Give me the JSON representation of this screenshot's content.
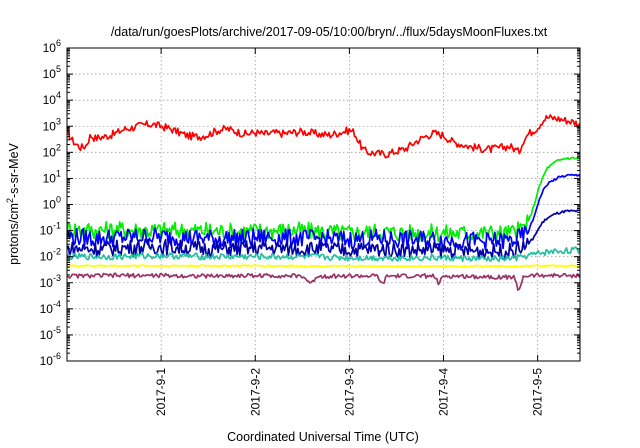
{
  "chart_data": {
    "type": "line",
    "title": "/data/run/goesPlots/archive/2017-09-05/10:00/bryn/../flux/5daysMoonFluxes.txt",
    "xlabel": "Coordinated Universal Time (UTC)",
    "ylabel": "protons/cm²-s-sr-MeV",
    "yscale": "log",
    "ylim": [
      1e-06,
      1000000.0
    ],
    "xlim": [
      0,
      5.45
    ],
    "x_unit": "days since 2017-08-31 00:00 UTC",
    "x_ticks": [
      {
        "value": 1,
        "label": "2017-9-1"
      },
      {
        "value": 2,
        "label": "2017-9-2"
      },
      {
        "value": 3,
        "label": "2017-9-3"
      },
      {
        "value": 4,
        "label": "2017-9-4"
      },
      {
        "value": 5,
        "label": "2017-9-5"
      }
    ],
    "y_ticks": [
      {
        "value": -6,
        "base": "10",
        "exp": "-6"
      },
      {
        "value": -5,
        "base": "10",
        "exp": "-5"
      },
      {
        "value": -4,
        "base": "10",
        "exp": "-4"
      },
      {
        "value": -3,
        "base": "10",
        "exp": "-3"
      },
      {
        "value": -2,
        "base": "10",
        "exp": "-2"
      },
      {
        "value": -1,
        "base": "10",
        "exp": "-1"
      },
      {
        "value": 0,
        "base": "10",
        "exp": "0"
      },
      {
        "value": 1,
        "base": "10",
        "exp": "1"
      },
      {
        "value": 2,
        "base": "10",
        "exp": "2"
      },
      {
        "value": 3,
        "base": "10",
        "exp": "3"
      },
      {
        "value": 4,
        "base": "10",
        "exp": "4"
      },
      {
        "value": 5,
        "base": "10",
        "exp": "5"
      },
      {
        "value": 6,
        "base": "10",
        "exp": "6"
      }
    ],
    "grid": true,
    "series": [
      {
        "color": "#ff0000",
        "points": [
          [
            0,
            700
          ],
          [
            0.05,
            300
          ],
          [
            0.1,
            200
          ],
          [
            0.15,
            150
          ],
          [
            0.2,
            180
          ],
          [
            0.25,
            450
          ],
          [
            0.3,
            350
          ],
          [
            0.4,
            400
          ],
          [
            0.5,
            500
          ],
          [
            0.6,
            750
          ],
          [
            0.7,
            900
          ],
          [
            0.8,
            1100
          ],
          [
            0.9,
            1200
          ],
          [
            1.0,
            1000
          ],
          [
            1.1,
            800
          ],
          [
            1.2,
            550
          ],
          [
            1.3,
            420
          ],
          [
            1.4,
            400
          ],
          [
            1.5,
            480
          ],
          [
            1.6,
            700
          ],
          [
            1.7,
            800
          ],
          [
            1.8,
            620
          ],
          [
            1.9,
            500
          ],
          [
            2.0,
            580
          ],
          [
            2.1,
            500
          ],
          [
            2.2,
            560
          ],
          [
            2.3,
            520
          ],
          [
            2.4,
            580
          ],
          [
            2.5,
            620
          ],
          [
            2.6,
            550
          ],
          [
            2.7,
            480
          ],
          [
            2.8,
            470
          ],
          [
            2.9,
            580
          ],
          [
            3.0,
            700
          ],
          [
            3.05,
            600
          ],
          [
            3.1,
            250
          ],
          [
            3.15,
            120
          ],
          [
            3.2,
            100
          ],
          [
            3.3,
            90
          ],
          [
            3.4,
            85
          ],
          [
            3.5,
            110
          ],
          [
            3.6,
            140
          ],
          [
            3.7,
            250
          ],
          [
            3.8,
            400
          ],
          [
            3.9,
            550
          ],
          [
            4.0,
            450
          ],
          [
            4.1,
            250
          ],
          [
            4.2,
            200
          ],
          [
            4.3,
            160
          ],
          [
            4.4,
            140
          ],
          [
            4.5,
            130
          ],
          [
            4.6,
            150
          ],
          [
            4.7,
            170
          ],
          [
            4.75,
            140
          ],
          [
            4.8,
            100
          ],
          [
            4.85,
            300
          ],
          [
            4.9,
            500
          ],
          [
            5.0,
            900
          ],
          [
            5.05,
            1600
          ],
          [
            5.1,
            2200
          ],
          [
            5.2,
            2000
          ],
          [
            5.3,
            1700
          ],
          [
            5.4,
            1400
          ],
          [
            5.45,
            1100
          ]
        ]
      },
      {
        "color": "#00ee00",
        "points": [
          [
            0,
            0.12
          ],
          [
            0.3,
            0.1
          ],
          [
            0.6,
            0.11
          ],
          [
            0.9,
            0.1
          ],
          [
            1.2,
            0.1
          ],
          [
            1.5,
            0.1
          ],
          [
            1.8,
            0.09
          ],
          [
            2.1,
            0.1
          ],
          [
            2.4,
            0.1
          ],
          [
            2.7,
            0.09
          ],
          [
            3.0,
            0.08
          ],
          [
            3.3,
            0.09
          ],
          [
            3.6,
            0.08
          ],
          [
            3.9,
            0.08
          ],
          [
            4.2,
            0.08
          ],
          [
            4.5,
            0.08
          ],
          [
            4.7,
            0.08
          ],
          [
            4.8,
            0.1
          ],
          [
            4.9,
            0.2
          ],
          [
            4.95,
            0.7
          ],
          [
            5.0,
            3
          ],
          [
            5.05,
            10
          ],
          [
            5.1,
            25
          ],
          [
            5.2,
            45
          ],
          [
            5.3,
            60
          ],
          [
            5.45,
            60
          ]
        ]
      },
      {
        "color": "#0000ff",
        "points": [
          [
            0,
            0.06
          ],
          [
            0.3,
            0.05
          ],
          [
            0.6,
            0.055
          ],
          [
            0.9,
            0.06
          ],
          [
            1.2,
            0.055
          ],
          [
            1.5,
            0.05
          ],
          [
            1.8,
            0.05
          ],
          [
            2.1,
            0.055
          ],
          [
            2.4,
            0.05
          ],
          [
            2.7,
            0.05
          ],
          [
            3.0,
            0.045
          ],
          [
            3.3,
            0.05
          ],
          [
            3.6,
            0.045
          ],
          [
            3.9,
            0.045
          ],
          [
            4.2,
            0.04
          ],
          [
            4.5,
            0.04
          ],
          [
            4.7,
            0.04
          ],
          [
            4.8,
            0.05
          ],
          [
            4.9,
            0.09
          ],
          [
            4.95,
            0.25
          ],
          [
            5.0,
            1
          ],
          [
            5.05,
            3
          ],
          [
            5.1,
            6
          ],
          [
            5.2,
            10
          ],
          [
            5.3,
            13
          ],
          [
            5.45,
            13
          ]
        ]
      },
      {
        "color": "#0000aa",
        "points": [
          [
            0,
            0.02
          ],
          [
            0.3,
            0.02
          ],
          [
            0.6,
            0.022
          ],
          [
            0.9,
            0.025
          ],
          [
            1.2,
            0.022
          ],
          [
            1.5,
            0.02
          ],
          [
            1.8,
            0.02
          ],
          [
            2.1,
            0.022
          ],
          [
            2.4,
            0.02
          ],
          [
            2.7,
            0.02
          ],
          [
            3.0,
            0.018
          ],
          [
            3.3,
            0.02
          ],
          [
            3.6,
            0.018
          ],
          [
            3.9,
            0.018
          ],
          [
            4.2,
            0.017
          ],
          [
            4.5,
            0.016
          ],
          [
            4.7,
            0.016
          ],
          [
            4.8,
            0.02
          ],
          [
            4.9,
            0.03
          ],
          [
            4.95,
            0.05
          ],
          [
            5.0,
            0.1
          ],
          [
            5.05,
            0.2
          ],
          [
            5.1,
            0.3
          ],
          [
            5.2,
            0.45
          ],
          [
            5.3,
            0.55
          ],
          [
            5.45,
            0.55
          ]
        ]
      },
      {
        "color": "#20c0a0",
        "points": [
          [
            0,
            0.01
          ],
          [
            0.5,
            0.01
          ],
          [
            1.0,
            0.011
          ],
          [
            1.5,
            0.01
          ],
          [
            2.0,
            0.01
          ],
          [
            2.5,
            0.01
          ],
          [
            3.0,
            0.009
          ],
          [
            3.5,
            0.009
          ],
          [
            4.0,
            0.009
          ],
          [
            4.5,
            0.008
          ],
          [
            4.8,
            0.009
          ],
          [
            4.9,
            0.011
          ],
          [
            5.0,
            0.013
          ],
          [
            5.1,
            0.015
          ],
          [
            5.2,
            0.016
          ],
          [
            5.3,
            0.017
          ],
          [
            5.45,
            0.018
          ]
        ]
      },
      {
        "color": "#ffff00",
        "points": [
          [
            0,
            0.0045
          ],
          [
            1.0,
            0.0045
          ],
          [
            2.0,
            0.0045
          ],
          [
            3.0,
            0.0043
          ],
          [
            4.0,
            0.0043
          ],
          [
            4.8,
            0.0043
          ],
          [
            5.0,
            0.0045
          ],
          [
            5.45,
            0.0045
          ]
        ]
      },
      {
        "color": "#993366",
        "points": [
          [
            0,
            0.0018
          ],
          [
            0.5,
            0.0019
          ],
          [
            1.0,
            0.0019
          ],
          [
            1.5,
            0.0018
          ],
          [
            2.0,
            0.0019
          ],
          [
            2.5,
            0.0018
          ],
          [
            2.6,
            0.0009
          ],
          [
            2.65,
            0.0018
          ],
          [
            3.0,
            0.0018
          ],
          [
            3.3,
            0.0018
          ],
          [
            3.35,
            0.0008
          ],
          [
            3.4,
            0.0018
          ],
          [
            3.9,
            0.0018
          ],
          [
            3.95,
            0.0009
          ],
          [
            4.0,
            0.0018
          ],
          [
            4.5,
            0.0017
          ],
          [
            4.75,
            0.0016
          ],
          [
            4.8,
            0.0005
          ],
          [
            4.85,
            0.0018
          ],
          [
            5.0,
            0.0019
          ],
          [
            5.45,
            0.0019
          ]
        ]
      }
    ]
  }
}
